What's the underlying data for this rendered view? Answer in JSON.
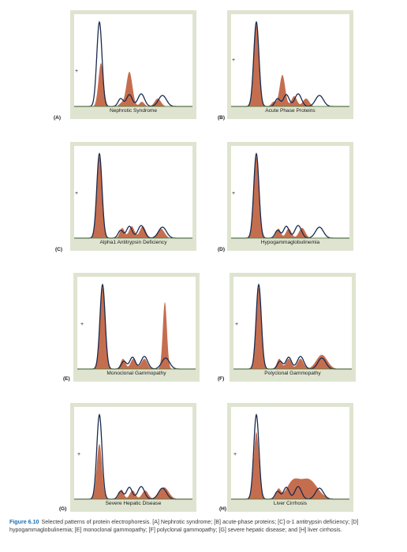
{
  "panels": [
    {
      "letter": "(A)",
      "plus": "+",
      "caption": "Nephrotic Syndrome"
    },
    {
      "letter": "(B)",
      "plus": "+",
      "caption": "Acute Phase Proteins"
    },
    {
      "letter": "(C)",
      "plus": "+",
      "caption": "Alpha1 Antitrypsin Deficiency"
    },
    {
      "letter": "(D)",
      "plus": "+",
      "caption": "Hypogammaglobulinemia"
    },
    {
      "letter": "(E)",
      "plus": "+",
      "caption": "Monoclonal Gammopathy"
    },
    {
      "letter": "(F)",
      "plus": "+",
      "caption": "Polyclonal Gammopathy"
    },
    {
      "letter": "(G)",
      "plus": "+",
      "caption": "Severe Hepatic Disease"
    },
    {
      "letter": "(H)",
      "plus": "+",
      "caption": "Liver Cirrhosis"
    }
  ],
  "figure_caption": {
    "label": "Figure 6.10",
    "text": "Selected patterns of protein electrophoresis. [A] Nephrotic syndrome; [B] acute-phase proteins; [C] α-1 antitrypsin deficiency; [D] hypogammaglobulinemia; [E] monoclonal gammopathy; [F] polyclonal gammopathy; [G] severe hepatic disease; and [H] liver cirrhosis."
  },
  "colors": {
    "frame": "#dfe4d0",
    "fill": "#c56e4f",
    "outline": "#1b2a4e",
    "baseline": "#5a7a3a",
    "label": "#1a6fb0"
  }
}
